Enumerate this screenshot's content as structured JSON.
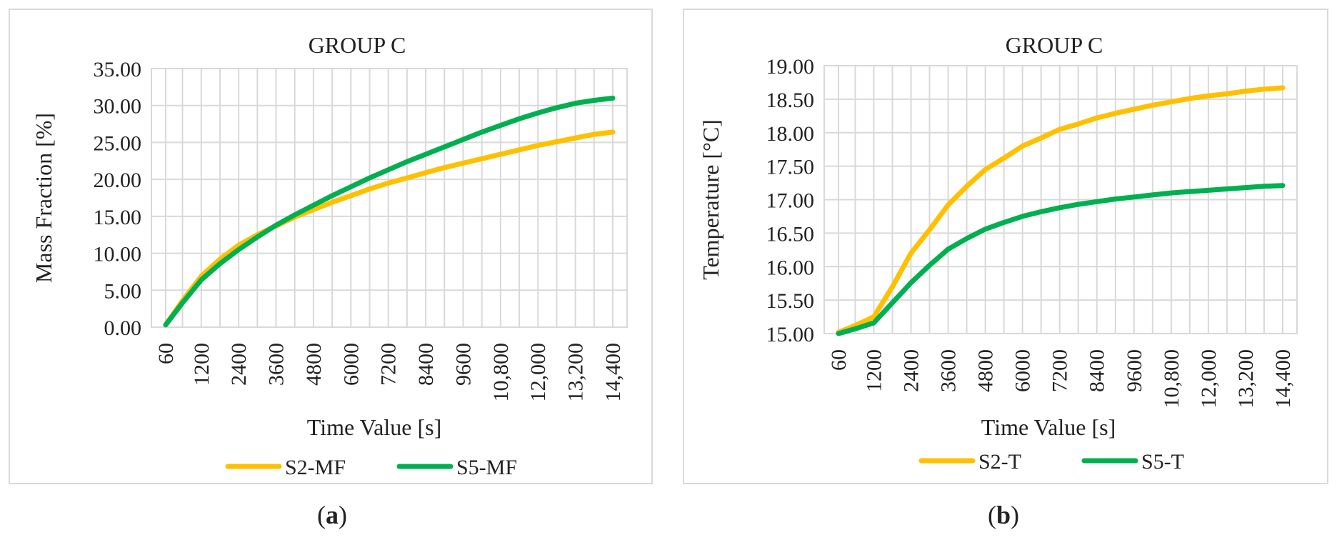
{
  "chart_data": [
    {
      "type": "line",
      "title": "GROUP C",
      "xlabel": "Time Value [s]",
      "ylabel": "Mass Fraction [%]",
      "categories": [
        "60",
        "1200",
        "2400",
        "3600",
        "4800",
        "6000",
        "7200",
        "8400",
        "9600",
        "10,800",
        "12,000",
        "13,200",
        "14,400"
      ],
      "x": [
        60,
        600,
        1200,
        1800,
        2400,
        3000,
        3600,
        4200,
        4800,
        5400,
        6000,
        6600,
        7200,
        7800,
        8400,
        9000,
        9600,
        10200,
        10800,
        11400,
        12000,
        12600,
        13200,
        13800,
        14400
      ],
      "ylim": [
        0,
        35
      ],
      "yticks": [
        "0.00",
        "5.00",
        "10.00",
        "15.00",
        "20.00",
        "25.00",
        "30.00",
        "35.00"
      ],
      "legend": "bottom",
      "grid": true,
      "series": [
        {
          "name": "S2-MF",
          "color": "#FFC000",
          "values": [
            0.3,
            3.6,
            6.9,
            9.2,
            11.1,
            12.5,
            13.7,
            14.9,
            15.9,
            16.9,
            17.8,
            18.7,
            19.5,
            20.2,
            20.9,
            21.6,
            22.2,
            22.8,
            23.4,
            24.0,
            24.6,
            25.1,
            25.6,
            26.1,
            26.4
          ]
        },
        {
          "name": "S5-MF",
          "color": "#00B050",
          "values": [
            0.3,
            3.3,
            6.4,
            8.6,
            10.5,
            12.2,
            13.8,
            15.2,
            16.5,
            17.8,
            19.0,
            20.2,
            21.3,
            22.4,
            23.4,
            24.4,
            25.4,
            26.4,
            27.3,
            28.2,
            29.0,
            29.7,
            30.3,
            30.7,
            31.0
          ]
        }
      ]
    },
    {
      "type": "line",
      "title": "GROUP C",
      "xlabel": "Time Value [s]",
      "ylabel": "Temperature [°C]",
      "categories": [
        "60",
        "1200",
        "2400",
        "3600",
        "4800",
        "6000",
        "7200",
        "8400",
        "9600",
        "10,800",
        "12,000",
        "13,200",
        "14,400"
      ],
      "x": [
        60,
        600,
        1200,
        1800,
        2400,
        3000,
        3600,
        4200,
        4800,
        5400,
        6000,
        6600,
        7200,
        7800,
        8400,
        9000,
        9600,
        10200,
        10800,
        11400,
        12000,
        12600,
        13200,
        13800,
        14400
      ],
      "ylim": [
        15,
        19
      ],
      "yticks": [
        "15.00",
        "15.50",
        "16.00",
        "16.50",
        "17.00",
        "17.50",
        "18.00",
        "18.50",
        "19.00"
      ],
      "legend": "bottom",
      "grid": true,
      "series": [
        {
          "name": "S2-T",
          "color": "#FFC000",
          "values": [
            15.02,
            15.12,
            15.25,
            15.7,
            16.2,
            16.55,
            16.92,
            17.2,
            17.45,
            17.62,
            17.8,
            17.92,
            18.05,
            18.13,
            18.22,
            18.29,
            18.35,
            18.41,
            18.46,
            18.51,
            18.55,
            18.58,
            18.62,
            18.65,
            18.67
          ]
        },
        {
          "name": "S5-T",
          "color": "#00B050",
          "values": [
            15.0,
            15.07,
            15.16,
            15.46,
            15.76,
            16.02,
            16.26,
            16.42,
            16.56,
            16.66,
            16.75,
            16.82,
            16.88,
            16.93,
            16.97,
            17.01,
            17.04,
            17.07,
            17.1,
            17.12,
            17.14,
            17.16,
            17.18,
            17.2,
            17.21
          ]
        }
      ]
    }
  ],
  "captions": [
    {
      "open": "(",
      "letter": "a",
      "close": ")"
    },
    {
      "open": "(",
      "letter": "b",
      "close": ")"
    }
  ]
}
